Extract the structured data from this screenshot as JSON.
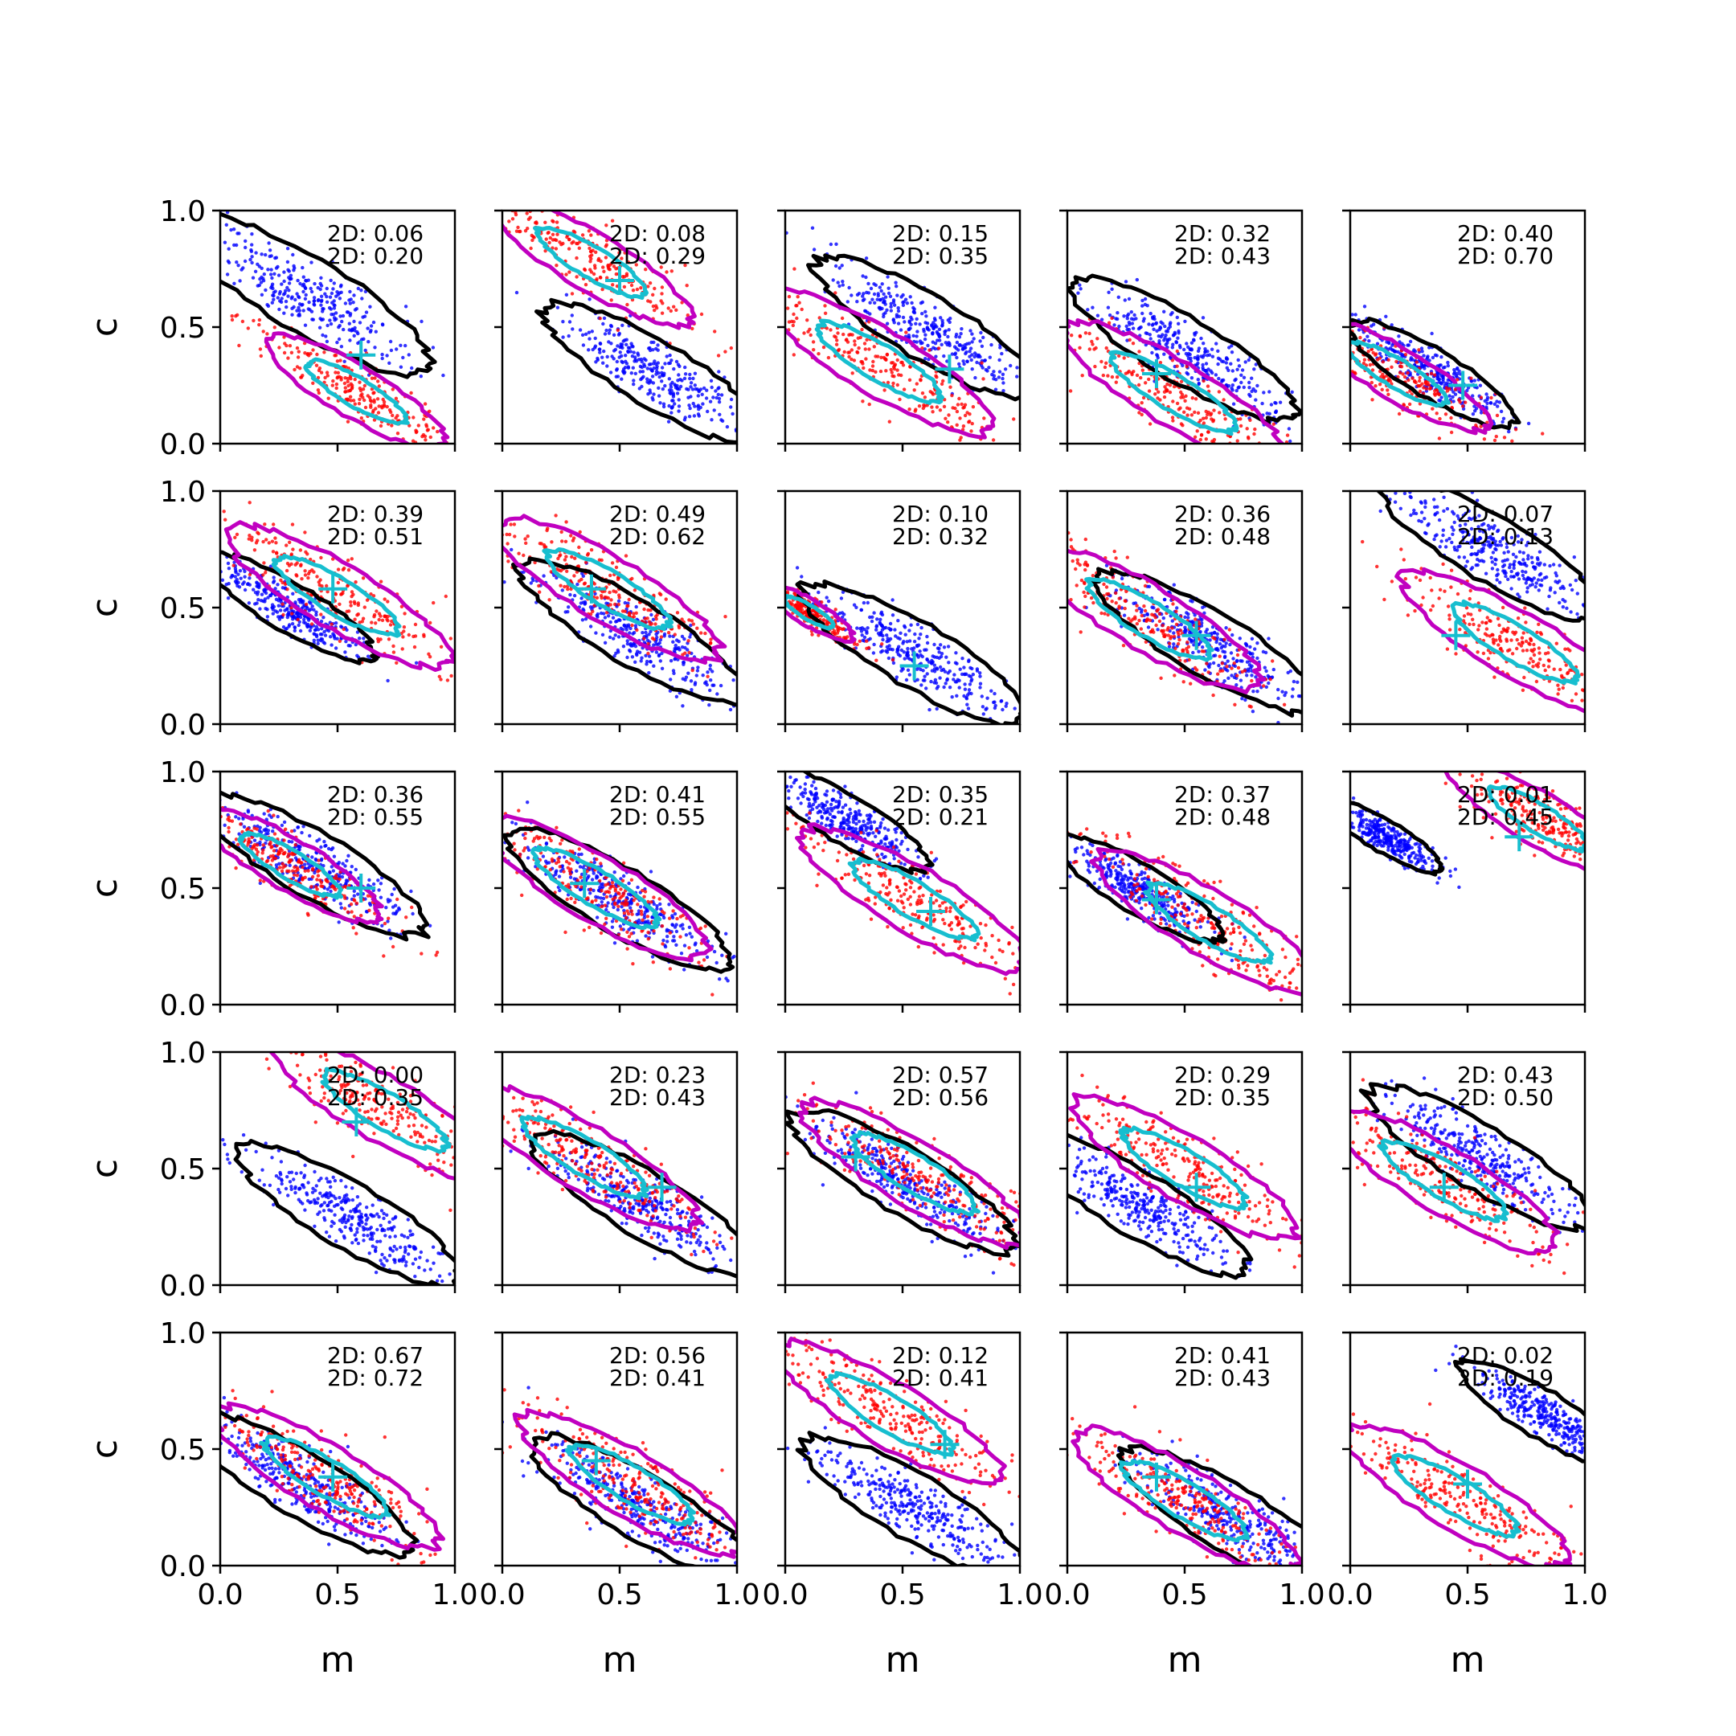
{
  "chart_data": {
    "type": "scatter",
    "layout": {
      "rows": 5,
      "cols": 5,
      "sharex": true,
      "sharey": true
    },
    "xlabel": "m",
    "ylabel": "c",
    "xlim": [
      0,
      1
    ],
    "ylim": [
      0,
      1
    ],
    "xticks": [
      "0.0",
      "0.5",
      "1.0"
    ],
    "yticks": [
      "0.0",
      "0.5",
      "1.0"
    ],
    "colors": {
      "series_a": "#0000ff",
      "series_b": "#ff0000",
      "contour_a": "#000000",
      "contour_b": "#c000c0",
      "contour_c": "#17becf",
      "marker": "#17becf"
    },
    "panels": [
      {
        "ann": [
          "2D: 0.06",
          "2D: 0.20"
        ],
        "blue": [
          0.35,
          0.65,
          0.23
        ],
        "red": [
          0.58,
          0.22,
          0.2
        ],
        "cross": [
          0.6,
          0.38
        ]
      },
      {
        "ann": [
          "2D: 0.08",
          "2D: 0.29"
        ],
        "blue": [
          0.65,
          0.3,
          0.2
        ],
        "red": [
          0.38,
          0.78,
          0.22
        ],
        "cross": [
          0.5,
          0.7
        ]
      },
      {
        "ann": [
          "2D: 0.15",
          "2D: 0.35"
        ],
        "blue": [
          0.6,
          0.5,
          0.2
        ],
        "red": [
          0.4,
          0.35,
          0.25
        ],
        "cross": [
          0.7,
          0.32
        ]
      },
      {
        "ann": [
          "2D: 0.32",
          "2D: 0.43"
        ],
        "blue": [
          0.5,
          0.4,
          0.2
        ],
        "red": [
          0.45,
          0.22,
          0.25
        ],
        "cross": [
          0.38,
          0.3
        ]
      },
      {
        "ann": [
          "2D: 0.40",
          "2D: 0.70"
        ],
        "blue": [
          0.35,
          0.3,
          0.15
        ],
        "red": [
          0.2,
          0.3,
          0.2
        ],
        "cross": [
          0.48,
          0.25
        ]
      },
      {
        "ann": [
          "2D: 0.39",
          "2D: 0.51"
        ],
        "blue": [
          0.3,
          0.5,
          0.15
        ],
        "red": [
          0.5,
          0.55,
          0.25
        ],
        "cross": [
          0.48,
          0.58
        ]
      },
      {
        "ann": [
          "2D: 0.49",
          "2D: 0.62"
        ],
        "blue": [
          0.55,
          0.4,
          0.2
        ],
        "red": [
          0.45,
          0.58,
          0.25
        ],
        "cross": [
          0.38,
          0.58
        ]
      },
      {
        "ann": [
          "2D: 0.10",
          "2D: 0.32"
        ],
        "blue": [
          0.55,
          0.3,
          0.2
        ],
        "red": [
          0.1,
          0.48,
          0.1
        ],
        "cross": [
          0.55,
          0.25
        ]
      },
      {
        "ann": [
          "2D: 0.36",
          "2D: 0.48"
        ],
        "blue": [
          0.6,
          0.35,
          0.2
        ],
        "red": [
          0.35,
          0.45,
          0.25
        ],
        "cross": [
          0.55,
          0.38
        ]
      },
      {
        "ann": [
          "2D: 0.07",
          "2D: 0.13"
        ],
        "blue": [
          0.6,
          0.75,
          0.2
        ],
        "red": [
          0.7,
          0.35,
          0.25
        ],
        "cross": [
          0.45,
          0.38
        ]
      },
      {
        "ann": [
          "2D: 0.36",
          "2D: 0.55"
        ],
        "blue": [
          0.4,
          0.6,
          0.2
        ],
        "red": [
          0.3,
          0.6,
          0.2
        ],
        "cross": [
          0.6,
          0.5
        ]
      },
      {
        "ann": [
          "2D: 0.41",
          "2D: 0.55"
        ],
        "blue": [
          0.5,
          0.45,
          0.2
        ],
        "red": [
          0.4,
          0.5,
          0.25
        ],
        "cross": [
          0.35,
          0.52
        ]
      },
      {
        "ann": [
          "2D: 0.35",
          "2D: 0.21"
        ],
        "blue": [
          0.25,
          0.8,
          0.15
        ],
        "red": [
          0.55,
          0.45,
          0.25
        ],
        "cross": [
          0.62,
          0.4
        ]
      },
      {
        "ann": [
          "2D: 0.37",
          "2D: 0.48"
        ],
        "blue": [
          0.3,
          0.5,
          0.15
        ],
        "red": [
          0.6,
          0.35,
          0.25
        ],
        "cross": [
          0.38,
          0.45
        ]
      },
      {
        "ann": [
          "2D: 0.01",
          "2D: 0.45"
        ],
        "blue": [
          0.15,
          0.72,
          0.1
        ],
        "red": [
          0.8,
          0.8,
          0.2
        ],
        "cross": [
          0.72,
          0.72
        ]
      },
      {
        "ann": [
          "2D: 0.00",
          "2D: 0.35"
        ],
        "blue": [
          0.55,
          0.3,
          0.2
        ],
        "red": [
          0.7,
          0.75,
          0.25
        ],
        "cross": [
          0.58,
          0.7
        ]
      },
      {
        "ann": [
          "2D: 0.23",
          "2D: 0.43"
        ],
        "blue": [
          0.6,
          0.35,
          0.2
        ],
        "red": [
          0.35,
          0.55,
          0.25
        ],
        "cross": [
          0.68,
          0.42
        ]
      },
      {
        "ann": [
          "2D: 0.57",
          "2D: 0.56"
        ],
        "blue": [
          0.5,
          0.45,
          0.2
        ],
        "red": [
          0.55,
          0.48,
          0.25
        ],
        "cross": [
          0.3,
          0.55
        ]
      },
      {
        "ann": [
          "2D: 0.29",
          "2D: 0.35"
        ],
        "blue": [
          0.3,
          0.35,
          0.2
        ],
        "red": [
          0.5,
          0.5,
          0.25
        ],
        "cross": [
          0.55,
          0.42
        ]
      },
      {
        "ann": [
          "2D: 0.43",
          "2D: 0.50"
        ],
        "blue": [
          0.55,
          0.55,
          0.2
        ],
        "red": [
          0.4,
          0.45,
          0.25
        ],
        "cross": [
          0.4,
          0.42
        ]
      },
      {
        "ann": [
          "2D: 0.67",
          "2D: 0.72"
        ],
        "blue": [
          0.35,
          0.35,
          0.2
        ],
        "red": [
          0.45,
          0.38,
          0.25
        ],
        "cross": [
          0.48,
          0.38
        ]
      },
      {
        "ann": [
          "2D: 0.56",
          "2D: 0.41"
        ],
        "blue": [
          0.6,
          0.25,
          0.2
        ],
        "red": [
          0.55,
          0.35,
          0.25
        ],
        "cross": [
          0.4,
          0.45
        ]
      },
      {
        "ann": [
          "2D: 0.12",
          "2D: 0.41"
        ],
        "blue": [
          0.55,
          0.25,
          0.2
        ],
        "red": [
          0.45,
          0.65,
          0.25
        ],
        "cross": [
          0.68,
          0.52
        ]
      },
      {
        "ann": [
          "2D: 0.41",
          "2D: 0.43"
        ],
        "blue": [
          0.7,
          0.2,
          0.2
        ],
        "red": [
          0.5,
          0.28,
          0.25
        ],
        "cross": [
          0.38,
          0.38
        ]
      },
      {
        "ann": [
          "2D: 0.02",
          "2D: 0.19"
        ],
        "blue": [
          0.82,
          0.65,
          0.15
        ],
        "red": [
          0.45,
          0.3,
          0.25
        ],
        "cross": [
          0.5,
          0.35
        ]
      }
    ]
  }
}
